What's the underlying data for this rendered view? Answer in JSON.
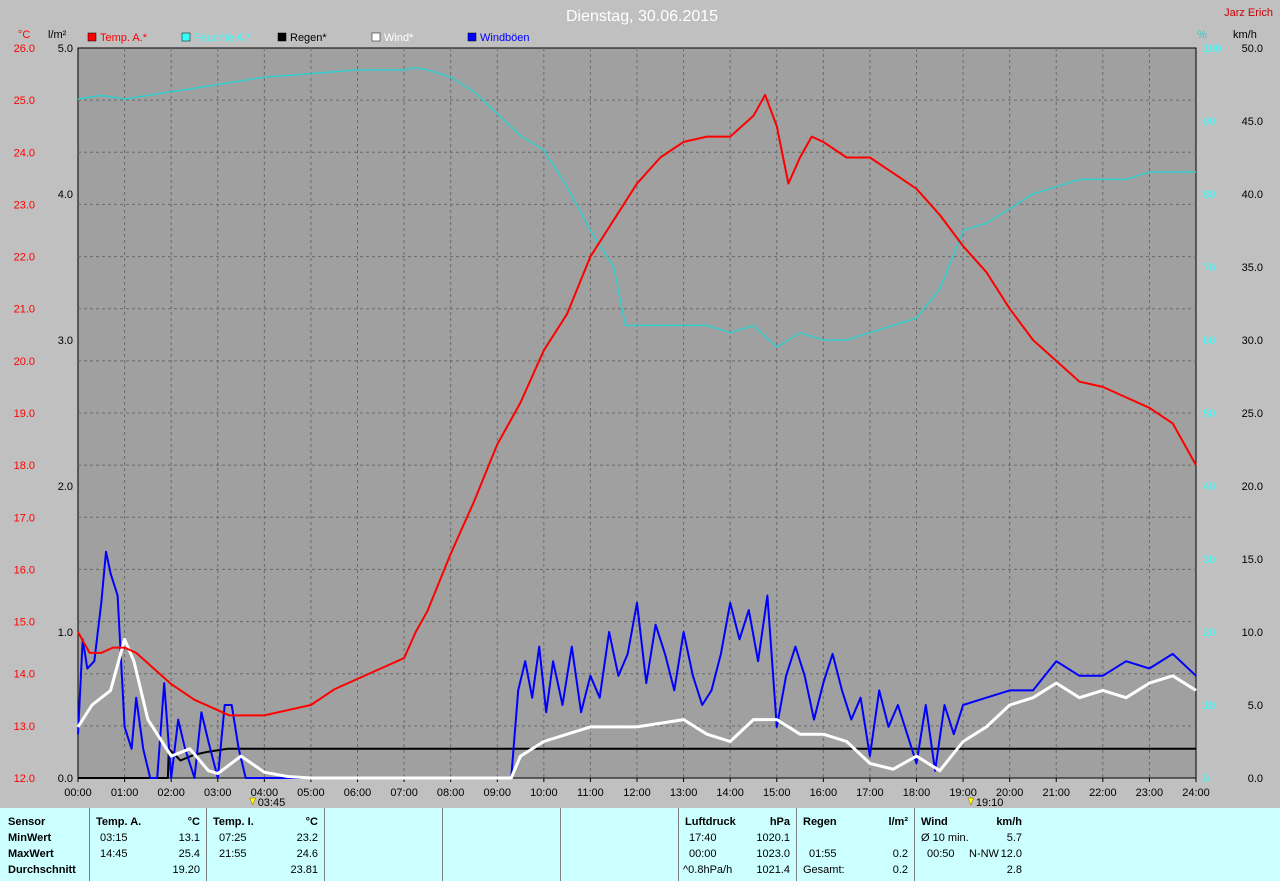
{
  "title": "Dienstag, 30.06.2015",
  "author": "Jarz Erich",
  "axis_units": {
    "left_temp": "°C",
    "left_rain": "l/m²",
    "right_humidity": "%",
    "right_wind": "km/h"
  },
  "legend": [
    {
      "label": "Temp. A.*",
      "color": "#ff0000"
    },
    {
      "label": "Feuchte A.*",
      "color": "#33ffff"
    },
    {
      "label": "Regen*",
      "color": "#000000"
    },
    {
      "label": "Wind*",
      "color": "#ffffff"
    },
    {
      "label": "Windböen",
      "color": "#0000ff"
    }
  ],
  "markers": [
    "03:45",
    "19:10"
  ],
  "colors": {
    "background": "#c0c0c0",
    "plot_bg": "#a0a0a0",
    "panel_bg": "#ccffff",
    "temp": "#ff0000",
    "humidity": "#33cccc",
    "rain": "#000000",
    "wind": "#ffffff",
    "gusts": "#0000ff"
  },
  "chart_data": {
    "type": "line",
    "title": "Dienstag, 30.06.2015",
    "x_ticks": [
      "00:00",
      "01:00",
      "02:00",
      "03:00",
      "04:00",
      "05:00",
      "06:00",
      "07:00",
      "08:00",
      "09:00",
      "10:00",
      "11:00",
      "12:00",
      "13:00",
      "14:00",
      "15:00",
      "16:00",
      "17:00",
      "18:00",
      "19:00",
      "20:00",
      "21:00",
      "22:00",
      "23:00",
      "24:00"
    ],
    "y_temp_ticks": [
      "26.0",
      "25.0",
      "24.0",
      "23.0",
      "22.0",
      "21.0",
      "20.0",
      "19.0",
      "18.0",
      "17.0",
      "16.0",
      "15.0",
      "14.0",
      "13.0",
      "12.0"
    ],
    "y_rain_ticks": [
      "5.0",
      "4.0",
      "3.0",
      "2.0",
      "1.0",
      "0.0"
    ],
    "y_humidity_ticks": [
      "100",
      "90",
      "80",
      "70",
      "60",
      "50",
      "40",
      "30",
      "20",
      "10",
      "0"
    ],
    "y_wind_ticks": [
      "50.0",
      "45.0",
      "40.0",
      "35.0",
      "30.0",
      "25.0",
      "20.0",
      "15.0",
      "10.0",
      "5.0",
      "0.0"
    ],
    "temp_range": [
      12,
      26
    ],
    "rain_range": [
      0,
      5
    ],
    "humidity_range": [
      0,
      100
    ],
    "wind_range": [
      0,
      50
    ],
    "grid": true,
    "series": [
      {
        "name": "Temp. A.*",
        "axis": "temp",
        "x": [
          0,
          0.25,
          0.5,
          0.75,
          1,
          1.25,
          1.5,
          2,
          2.5,
          3,
          3.25,
          3.5,
          4,
          4.5,
          5,
          5.5,
          6,
          6.5,
          7,
          7.25,
          7.5,
          8,
          8.5,
          9,
          9.5,
          10,
          10.5,
          11,
          11.5,
          12,
          12.5,
          13,
          13.5,
          14,
          14.5,
          14.75,
          15,
          15.25,
          15.5,
          15.75,
          16,
          16.5,
          17,
          17.5,
          18,
          18.5,
          19,
          19.5,
          20,
          20.5,
          21,
          21.5,
          22,
          22.5,
          23,
          23.5,
          24
        ],
        "values": [
          14.8,
          14.4,
          14.4,
          14.5,
          14.5,
          14.4,
          14.2,
          13.8,
          13.5,
          13.3,
          13.2,
          13.2,
          13.2,
          13.3,
          13.4,
          13.7,
          13.9,
          14.1,
          14.3,
          14.8,
          15.2,
          16.3,
          17.3,
          18.4,
          19.2,
          20.2,
          20.9,
          22.0,
          22.7,
          23.4,
          23.9,
          24.2,
          24.3,
          24.3,
          24.7,
          25.1,
          24.5,
          23.4,
          23.9,
          24.3,
          24.2,
          23.9,
          23.9,
          23.6,
          23.3,
          22.8,
          22.2,
          21.7,
          21.0,
          20.4,
          20.0,
          19.6,
          19.5,
          19.3,
          19.1,
          18.8,
          18.0
        ]
      },
      {
        "name": "Feuchte A.*",
        "axis": "humidity",
        "x": [
          0,
          0.5,
          1,
          1.5,
          2,
          2.5,
          3,
          3.5,
          4,
          5,
          6,
          7,
          7.25,
          7.5,
          8,
          8.5,
          9,
          9.5,
          10,
          10.5,
          11,
          11.5,
          11.75,
          12,
          12.5,
          13,
          13.5,
          14,
          14.5,
          15,
          15.5,
          16,
          16.5,
          17,
          17.5,
          18,
          18.5,
          19,
          19.5,
          20,
          20.5,
          21,
          21.5,
          22,
          22.5,
          23,
          23.5,
          24
        ],
        "values": [
          93,
          93.5,
          93,
          93.5,
          94,
          94.5,
          95,
          95.5,
          96,
          96.5,
          97,
          97,
          97.3,
          97,
          96,
          94,
          91,
          88,
          86,
          81,
          75,
          70,
          62,
          62,
          62,
          62,
          62,
          61,
          62,
          59,
          61,
          60,
          60,
          61,
          62,
          63,
          67,
          75,
          76,
          78,
          80,
          81,
          82,
          82,
          82,
          83,
          83,
          83
        ]
      },
      {
        "name": "Regen*",
        "axis": "rain",
        "x": [
          0,
          1.93,
          1.95,
          2.2,
          2.5,
          2.8,
          3,
          3.2,
          24
        ],
        "values": [
          0,
          0,
          0.2,
          0.12,
          0.16,
          0.18,
          0.19,
          0.2,
          0.2
        ]
      },
      {
        "name": "Wind*",
        "axis": "wind",
        "x": [
          0,
          0.3,
          0.7,
          1,
          1.2,
          1.5,
          2,
          2.4,
          2.8,
          3,
          3.5,
          4,
          4.5,
          5,
          9.3,
          9.5,
          10,
          11,
          12,
          13,
          13.5,
          14,
          14.5,
          15,
          15.5,
          16,
          16.5,
          17,
          17.5,
          18,
          18.5,
          19,
          19.5,
          20,
          20.5,
          21,
          21.5,
          22,
          22.5,
          23,
          23.5,
          24
        ],
        "values": [
          3.5,
          5,
          6,
          9.5,
          8,
          4,
          1.5,
          2,
          0.5,
          0.3,
          1.5,
          0.4,
          0.1,
          0,
          0,
          1.5,
          2.5,
          3.5,
          3.5,
          4,
          3,
          2.5,
          4,
          4,
          3,
          3,
          2.5,
          1,
          0.6,
          1.5,
          0.5,
          2.5,
          3.5,
          5,
          5.5,
          6.5,
          5.5,
          6,
          5.5,
          6.5,
          7,
          6
        ]
      },
      {
        "name": "Windböen",
        "axis": "wind",
        "x": [
          0,
          0.1,
          0.2,
          0.35,
          0.5,
          0.6,
          0.7,
          0.85,
          1,
          1.15,
          1.25,
          1.4,
          1.55,
          1.7,
          1.85,
          2,
          2.15,
          2.3,
          2.5,
          2.65,
          2.8,
          3,
          3.15,
          3.3,
          3.45,
          3.6,
          3.75,
          3.9,
          4,
          4.15,
          4.3,
          4.5,
          9.3,
          9.45,
          9.6,
          9.75,
          9.9,
          10.05,
          10.2,
          10.4,
          10.6,
          10.8,
          11,
          11.2,
          11.4,
          11.6,
          11.8,
          12,
          12.2,
          12.4,
          12.6,
          12.8,
          13,
          13.2,
          13.4,
          13.6,
          13.8,
          14,
          14.2,
          14.4,
          14.6,
          14.8,
          15,
          15.2,
          15.4,
          15.6,
          15.8,
          16,
          16.2,
          16.4,
          16.6,
          16.8,
          17,
          17.2,
          17.4,
          17.6,
          17.8,
          18,
          18.2,
          18.4,
          18.6,
          18.8,
          19,
          19.5,
          20,
          20.5,
          21,
          21.5,
          22,
          22.5,
          23,
          23.5,
          24
        ],
        "values": [
          3,
          9.5,
          7.5,
          8,
          12,
          15.5,
          14,
          12.5,
          3.5,
          2,
          5.5,
          2,
          0,
          0,
          6.5,
          0,
          4,
          2,
          0,
          4.5,
          2.5,
          0,
          5,
          5,
          2,
          0,
          0,
          0,
          0,
          0,
          0,
          0,
          0,
          6,
          8,
          5.5,
          9,
          4.5,
          8,
          5,
          9,
          4.5,
          7,
          5.5,
          10,
          7,
          8.5,
          12,
          6.5,
          10.5,
          8.5,
          6,
          10,
          7,
          5,
          6,
          8.5,
          12,
          9.5,
          11.5,
          8,
          12.5,
          3.5,
          7,
          9,
          7,
          4,
          6.5,
          8.5,
          6,
          4,
          5.5,
          1.5,
          6,
          3.5,
          5,
          3,
          1,
          5,
          0.5,
          5,
          3,
          5,
          5.5,
          6,
          6,
          8,
          7,
          7,
          8,
          7.5,
          8.5,
          7
        ]
      }
    ]
  },
  "summary": {
    "sensor": {
      "header": "Sensor",
      "rows": [
        "MinWert",
        "MaxWert",
        "Durchschnitt"
      ]
    },
    "temp_a": {
      "header": "Temp. A.",
      "unit": "°C",
      "rows": [
        {
          "time": "03:15",
          "value": "13.1"
        },
        {
          "time": "14:45",
          "value": "25.4"
        },
        {
          "time": "",
          "value": "19.20"
        }
      ]
    },
    "temp_i": {
      "header": "Temp. I.",
      "unit": "°C",
      "rows": [
        {
          "time": "07:25",
          "value": "23.2"
        },
        {
          "time": "21:55",
          "value": "24.6"
        },
        {
          "time": "",
          "value": "23.81"
        }
      ]
    },
    "luftdruck": {
      "header": "Luftdruck",
      "unit": "hPa",
      "rows": [
        {
          "time": "17:40",
          "value": "1020.1"
        },
        {
          "time": "00:00",
          "value": "1023.0"
        },
        {
          "time": "^0.8hPa/h",
          "value": "1021.4"
        }
      ]
    },
    "regen": {
      "header": "Regen",
      "unit": "l/m²",
      "rows": [
        {
          "time": "",
          "value": ""
        },
        {
          "time": "01:55",
          "value": "0.2"
        },
        {
          "time": "Gesamt:",
          "value": "0.2"
        }
      ]
    },
    "wind": {
      "header": "Wind",
      "unit": "km/h",
      "rows": [
        {
          "time": "Ø 10 min.",
          "dir": "",
          "value": "5.7"
        },
        {
          "time": "00:50",
          "dir": "N-NW",
          "value": "12.0"
        },
        {
          "time": "",
          "dir": "",
          "value": "2.8"
        }
      ]
    }
  }
}
